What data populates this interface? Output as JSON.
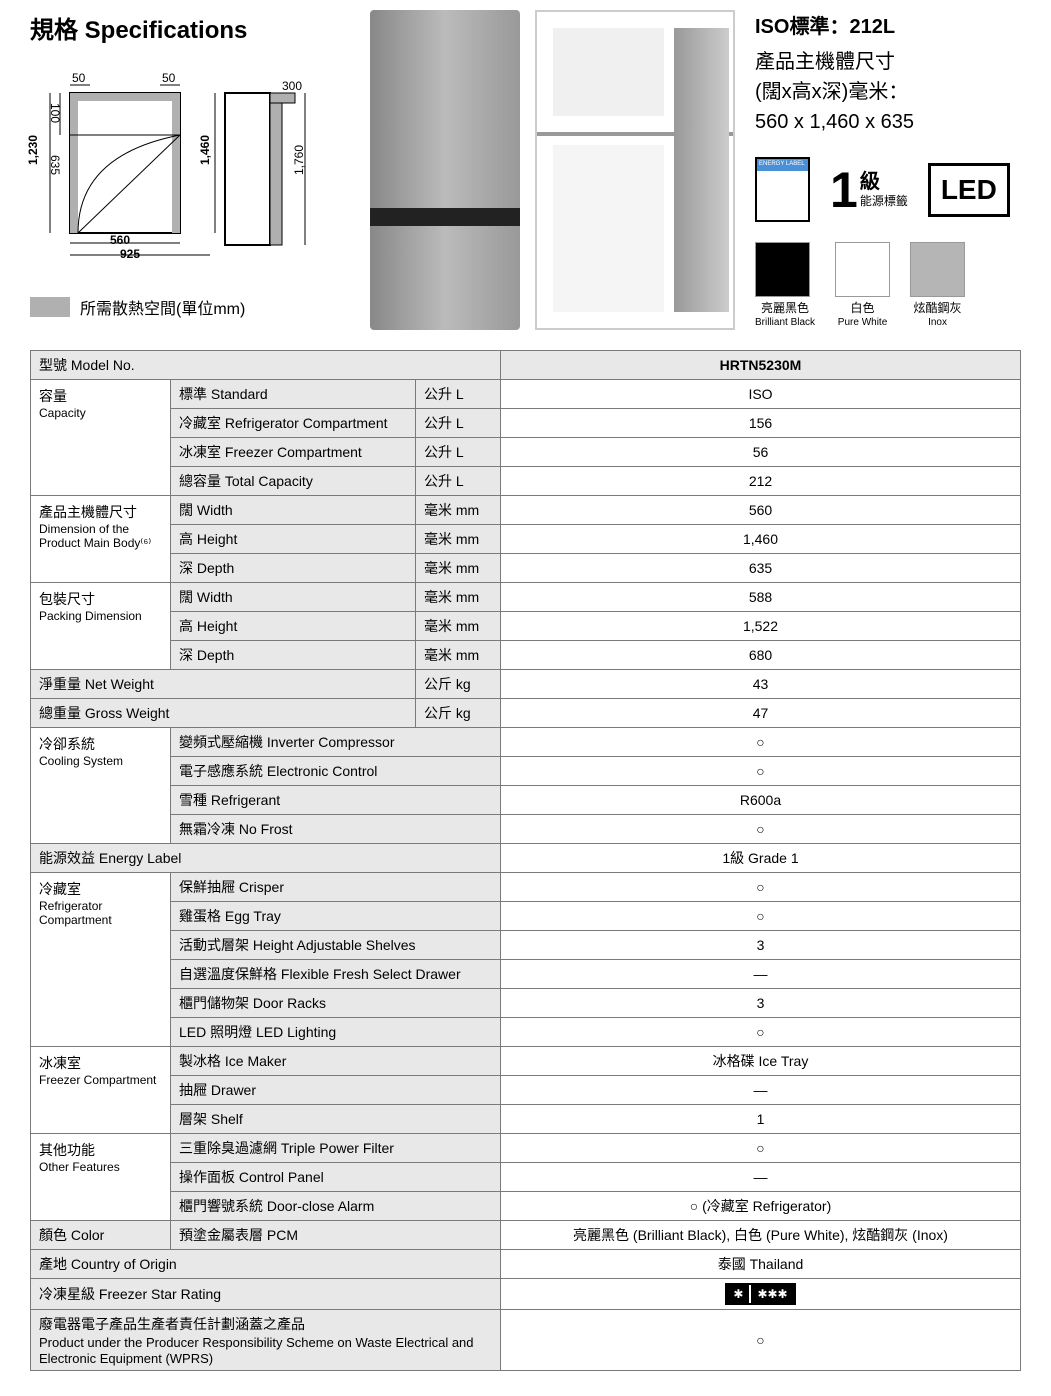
{
  "title": "規格 Specifications",
  "diagram": {
    "top_left_50": "50",
    "top_right_50": "50",
    "v_100": "100",
    "v_635": "635",
    "v_1230": "1,230",
    "v_1460": "1,460",
    "v_1760": "1,760",
    "h_560": "560",
    "h_925": "925",
    "h_300": "300"
  },
  "clearance_label": "所需散熱空間(單位mm)",
  "right": {
    "iso": "ISO標準：212L",
    "dim_title": "產品主機體尺寸",
    "dim_sub": "(闊x高x深)毫米：",
    "dim_val": "560 x 1,460 x 635",
    "grade1_num": "1",
    "grade1_kyu": "級",
    "grade1_label": "能源標籤",
    "led": "LED"
  },
  "colors": [
    {
      "hex": "#000000",
      "label": "亮麗黑色",
      "sub": "Brilliant Black"
    },
    {
      "hex": "#ffffff",
      "label": "白色",
      "sub": "Pure White"
    },
    {
      "hex": "#b5b5b5",
      "label": "炫酷鋼灰",
      "sub": "Inox"
    }
  ],
  "table": {
    "model_label": "型號 Model No.",
    "model_val": "HRTN5230M",
    "groups": [
      {
        "cat": "容量",
        "cat_sub": "Capacity",
        "rows": [
          {
            "label": "標準 Standard",
            "unit": "公升 L",
            "val": "ISO"
          },
          {
            "label": "冷藏室 Refrigerator Compartment",
            "unit": "公升 L",
            "val": "156"
          },
          {
            "label": "冰凍室 Freezer Compartment",
            "unit": "公升 L",
            "val": "56"
          },
          {
            "label": "總容量 Total Capacity",
            "unit": "公升 L",
            "val": "212"
          }
        ]
      },
      {
        "cat": "產品主機體尺寸",
        "cat_sub": "Dimension of the Product Main Body⁽⁶⁾",
        "rows": [
          {
            "label": "闊 Width",
            "unit": "毫米 mm",
            "val": "560"
          },
          {
            "label": "高 Height",
            "unit": "毫米 mm",
            "val": "1,460"
          },
          {
            "label": "深 Depth",
            "unit": "毫米 mm",
            "val": "635"
          }
        ]
      },
      {
        "cat": "包裝尺寸",
        "cat_sub": "Packing Dimension",
        "rows": [
          {
            "label": "闊 Width",
            "unit": "毫米 mm",
            "val": "588"
          },
          {
            "label": "高 Height",
            "unit": "毫米 mm",
            "val": "1,522"
          },
          {
            "label": "深 Depth",
            "unit": "毫米 mm",
            "val": "680"
          }
        ]
      }
    ],
    "net_weight": {
      "label": "淨重量 Net Weight",
      "unit": "公斤 kg",
      "val": "43"
    },
    "gross_weight": {
      "label": "總重量 Gross Weight",
      "unit": "公斤 kg",
      "val": "47"
    },
    "cooling": {
      "cat": "冷卻系統",
      "cat_sub": "Cooling System",
      "rows": [
        {
          "label": "變頻式壓縮機 Inverter Compressor",
          "val": "○"
        },
        {
          "label": "電子感應系統 Electronic Control",
          "val": "○"
        },
        {
          "label": "雪種 Refrigerant",
          "val": "R600a"
        },
        {
          "label": "無霜冷凍 No Frost",
          "val": "○"
        }
      ]
    },
    "energy_label": {
      "label": "能源效益 Energy Label",
      "val": "1級 Grade 1"
    },
    "fridge_comp": {
      "cat": "冷藏室",
      "cat_sub": "Refrigerator Compartment",
      "rows": [
        {
          "label": "保鮮抽屜 Crisper",
          "val": "○"
        },
        {
          "label": "雞蛋格 Egg Tray",
          "val": "○"
        },
        {
          "label": "活動式層架 Height Adjustable Shelves",
          "val": "3"
        },
        {
          "label": "自選溫度保鮮格 Flexible Fresh Select Drawer",
          "val": "—"
        },
        {
          "label": "櫃門儲物架 Door Racks",
          "val": "3"
        },
        {
          "label": "LED 照明燈 LED Lighting",
          "val": "○"
        }
      ]
    },
    "freezer_comp": {
      "cat": "冰凍室",
      "cat_sub": "Freezer Compartment",
      "rows": [
        {
          "label": "製冰格 Ice Maker",
          "val": "冰格碟 Ice Tray"
        },
        {
          "label": "抽屜 Drawer",
          "val": "—"
        },
        {
          "label": "層架 Shelf",
          "val": "1"
        }
      ]
    },
    "other": {
      "cat": "其他功能",
      "cat_sub": "Other Features",
      "rows": [
        {
          "label": "三重除臭過濾網 Triple Power Filter",
          "val": "○"
        },
        {
          "label": "操作面板 Control Panel",
          "val": "—"
        },
        {
          "label": "櫃門響號系統 Door-close Alarm",
          "val": "○ (冷藏室 Refrigerator)"
        }
      ]
    },
    "color_row": {
      "cat": "顏色 Color",
      "label": "預塗金屬表層 PCM",
      "val": "亮麗黑色 (Brilliant Black), 白色 (Pure White), 炫酷鋼灰 (Inox)"
    },
    "origin": {
      "label": "產地 Country of Origin",
      "val": "泰國 Thailand"
    },
    "freezer_star": {
      "label": "冷凍星級 Freezer Star Rating"
    },
    "wprs": {
      "label": "廢電器電子產品生產者責任計劃涵蓋之產品",
      "sub": "Product under the Producer Responsibility Scheme on Waste Electrical and Electronic Equipment (WPRS)",
      "val": "○"
    }
  }
}
